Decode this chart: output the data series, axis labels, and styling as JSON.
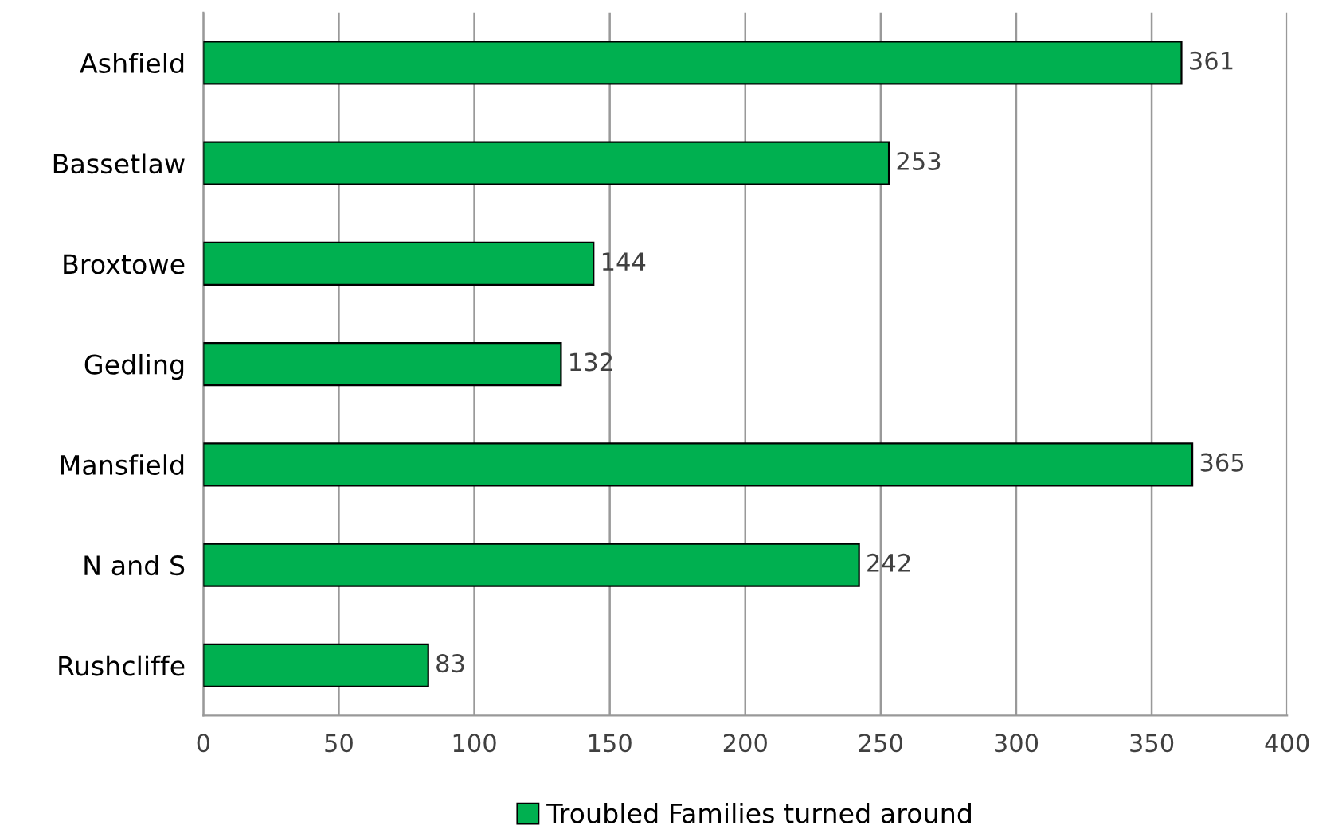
{
  "chart_data": {
    "type": "bar",
    "orientation": "horizontal",
    "categories": [
      "Ashfield",
      "Bassetlaw",
      "Broxtowe",
      "Gedling",
      "Mansfield",
      "N and S",
      "Rushcliffe"
    ],
    "series": [
      {
        "name": "Troubled Families turned around",
        "color": "#00b050",
        "values": [
          361,
          253,
          144,
          132,
          365,
          242,
          83
        ]
      }
    ],
    "xlim": [
      0,
      400
    ],
    "xticks": [
      0,
      50,
      100,
      150,
      200,
      250,
      300,
      350,
      400
    ],
    "grid": "x",
    "legend": "bottom",
    "data_labels": true
  }
}
